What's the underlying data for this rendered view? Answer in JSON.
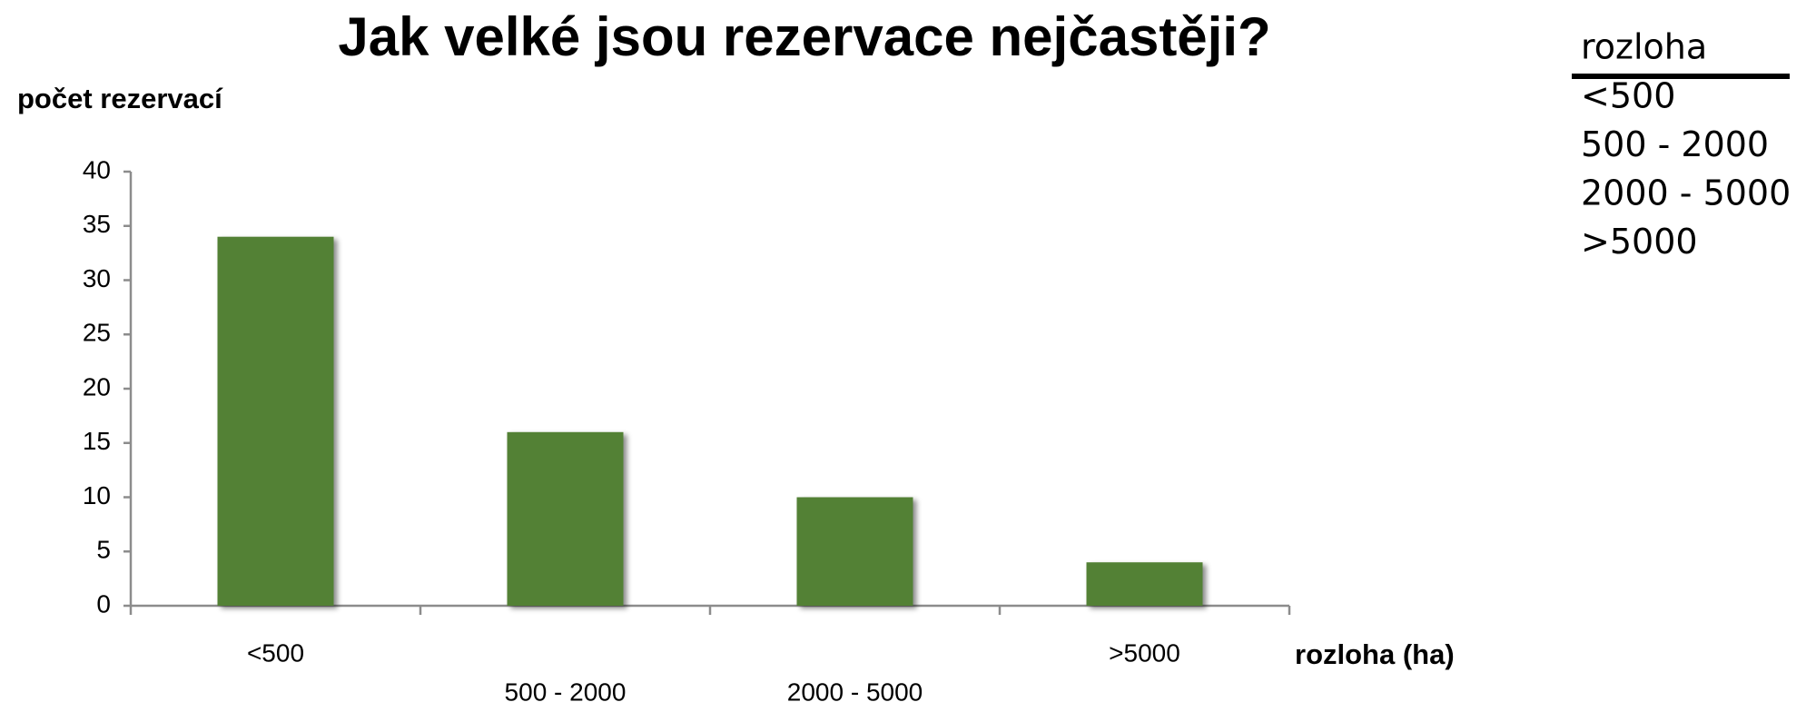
{
  "chart_data": {
    "type": "bar",
    "title": "Jak velké jsou rezervace nejčastěji?",
    "y_label": "počet rezervací",
    "x_label": "rozloha (ha)",
    "categories": [
      "<500",
      "500 - 2000",
      "2000 - 5000",
      ">5000"
    ],
    "values": [
      34,
      16,
      10,
      4
    ],
    "color": "#538135",
    "ylim": [
      0,
      40
    ],
    "yticks": [
      0,
      5,
      10,
      15,
      20,
      25,
      30,
      35,
      40
    ],
    "grid": false,
    "legend_title": "rozloha"
  }
}
